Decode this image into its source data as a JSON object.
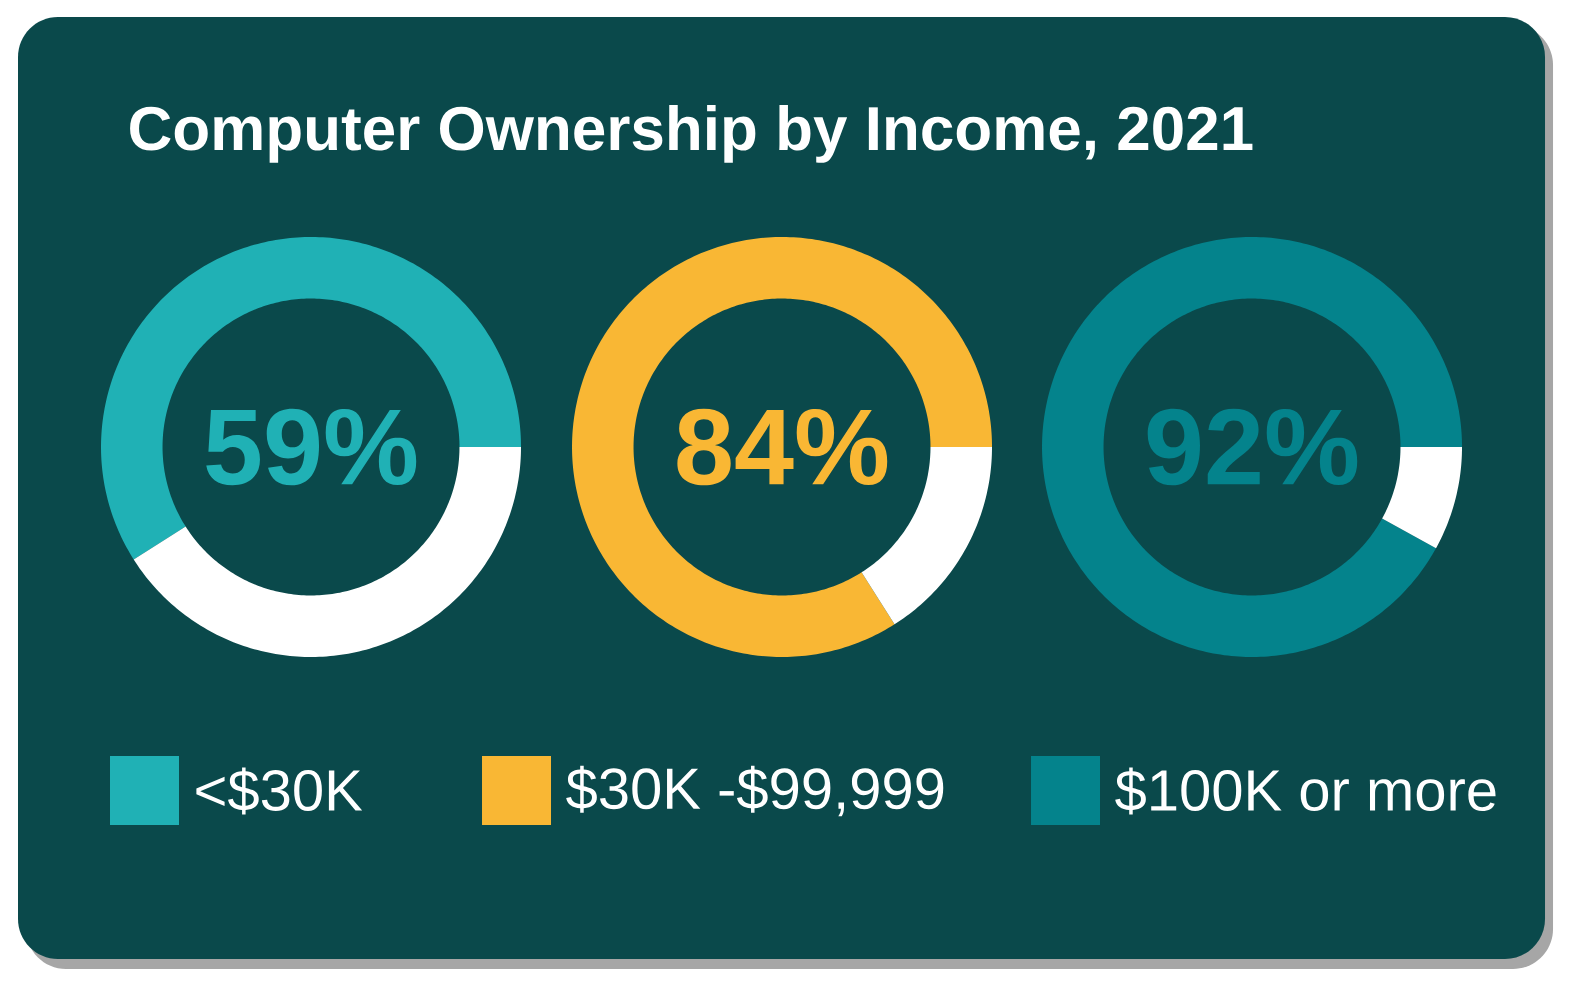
{
  "chart_data": [
    {
      "type": "donut",
      "title": "Computer Ownership by Income, 2021",
      "categories": [
        "<$30K",
        null
      ],
      "values": [
        59,
        41
      ],
      "colors": [
        "#20b1b5",
        "#ffffff"
      ],
      "value_labels": [
        "59%",
        null
      ],
      "legend": "bottom"
    },
    {
      "type": "donut",
      "categories": [
        "$30K -$99,999",
        null
      ],
      "values": [
        84,
        16
      ],
      "colors": [
        "#f9b734",
        "#ffffff"
      ],
      "value_labels": [
        "84%",
        null
      ],
      "legend": "bottom"
    },
    {
      "type": "donut",
      "categories": [
        "$100K or more",
        null
      ],
      "values": [
        92,
        8
      ],
      "colors": [
        "#04838c",
        "#ffffff"
      ],
      "value_labels": [
        "92%",
        null
      ],
      "legend": "bottom"
    }
  ]
}
